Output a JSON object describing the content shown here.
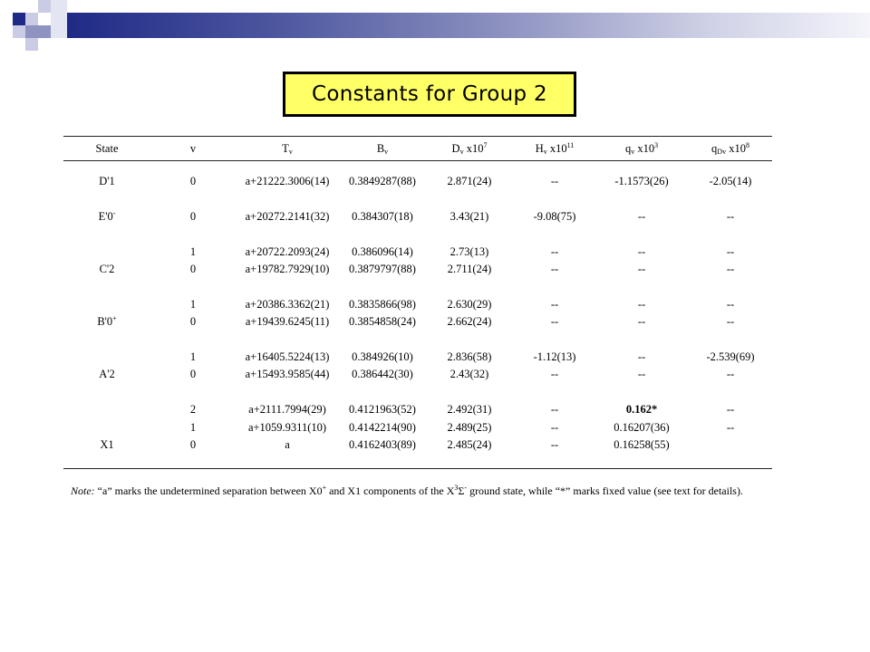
{
  "title": "Constants for Group 2",
  "colors": {
    "title_bg": "#ffff66",
    "band_dark": "#1f2a86",
    "band_light": "#cfd1e6"
  },
  "table": {
    "headers": {
      "state": "State",
      "v": "v",
      "tv": "T",
      "tv_sub": "v",
      "bv": "B",
      "bv_sub": "v",
      "dv": "D",
      "dv_sub": "v",
      "dv_unit": " x10",
      "dv_exp": "7",
      "hv": "H",
      "hv_sub": "v",
      "hv_unit": " x10",
      "hv_exp": "11",
      "qv": "q",
      "qv_sub": "v",
      "qv_unit": " x10",
      "qv_exp": "3",
      "qdv": "q",
      "qdv_sub": "Dv",
      "qdv_unit": " x10",
      "qdv_exp": "8"
    },
    "states": [
      {
        "name": "D'1",
        "sup": ""
      },
      {
        "name": "E'0",
        "sup": "-"
      },
      {
        "name": "C'2",
        "sup": ""
      },
      {
        "name": "B'0",
        "sup": "+"
      },
      {
        "name": "A'2",
        "sup": ""
      },
      {
        "name": "X1",
        "sup": ""
      }
    ],
    "rows": [
      {
        "v": "0",
        "tv": "a+21222.3006(14)",
        "bv": "0.3849287(88)",
        "dv": "2.871(24)",
        "hv": "--",
        "qv": "-1.1573(26)",
        "qdv": "-2.05(14)"
      },
      {
        "v": "0",
        "tv": "a+20272.2141(32)",
        "bv": "0.384307(18)",
        "dv": "3.43(21)",
        "hv": "-9.08(75)",
        "qv": "--",
        "qdv": "--"
      },
      {
        "v": "1",
        "tv": "a+20722.2093(24)",
        "bv": "0.386096(14)",
        "dv": "2.73(13)",
        "hv": "--",
        "qv": "--",
        "qdv": "--"
      },
      {
        "v": "0",
        "tv": "a+19782.7929(10)",
        "bv": "0.3879797(88)",
        "dv": "2.711(24)",
        "hv": "--",
        "qv": "--",
        "qdv": "--"
      },
      {
        "v": "1",
        "tv": "a+20386.3362(21)",
        "bv": "0.3835866(98)",
        "dv": "2.630(29)",
        "hv": "--",
        "qv": "--",
        "qdv": "--"
      },
      {
        "v": "0",
        "tv": "a+19439.6245(11)",
        "bv": "0.3854858(24)",
        "dv": "2.662(24)",
        "hv": "--",
        "qv": "--",
        "qdv": "--"
      },
      {
        "v": "1",
        "tv": "a+16405.5224(13)",
        "bv": "0.384926(10)",
        "dv": "2.836(58)",
        "hv": "-1.12(13)",
        "qv": "--",
        "qdv": "-2.539(69)"
      },
      {
        "v": "0",
        "tv": "a+15493.9585(44)",
        "bv": "0.386442(30)",
        "dv": "2.43(32)",
        "hv": "--",
        "qv": "--",
        "qdv": "--"
      },
      {
        "v": "2",
        "tv": "a+2111.7994(29)",
        "bv": "0.4121963(52)",
        "dv": "2.492(31)",
        "hv": "--",
        "qv": "0.162*",
        "qdv": "--"
      },
      {
        "v": "1",
        "tv": "a+1059.9311(10)",
        "bv": "0.4142214(90)",
        "dv": "2.489(25)",
        "hv": "--",
        "qv": "0.16207(36)",
        "qdv": "--"
      },
      {
        "v": "0",
        "tv": "a",
        "bv": "0.4162403(89)",
        "dv": "2.485(24)",
        "hv": "--",
        "qv": "0.16258(55)",
        "qdv": ""
      }
    ]
  },
  "note": {
    "label": "Note:",
    "text1": " “a” marks the undetermined separation between X0",
    "sup1": "+",
    "text2": " and X1 components of the X",
    "sup2": "3",
    "sigma": "Σ",
    "sup3": "-",
    "text3": " ground state, while “*” marks fixed value (see text for details)."
  }
}
